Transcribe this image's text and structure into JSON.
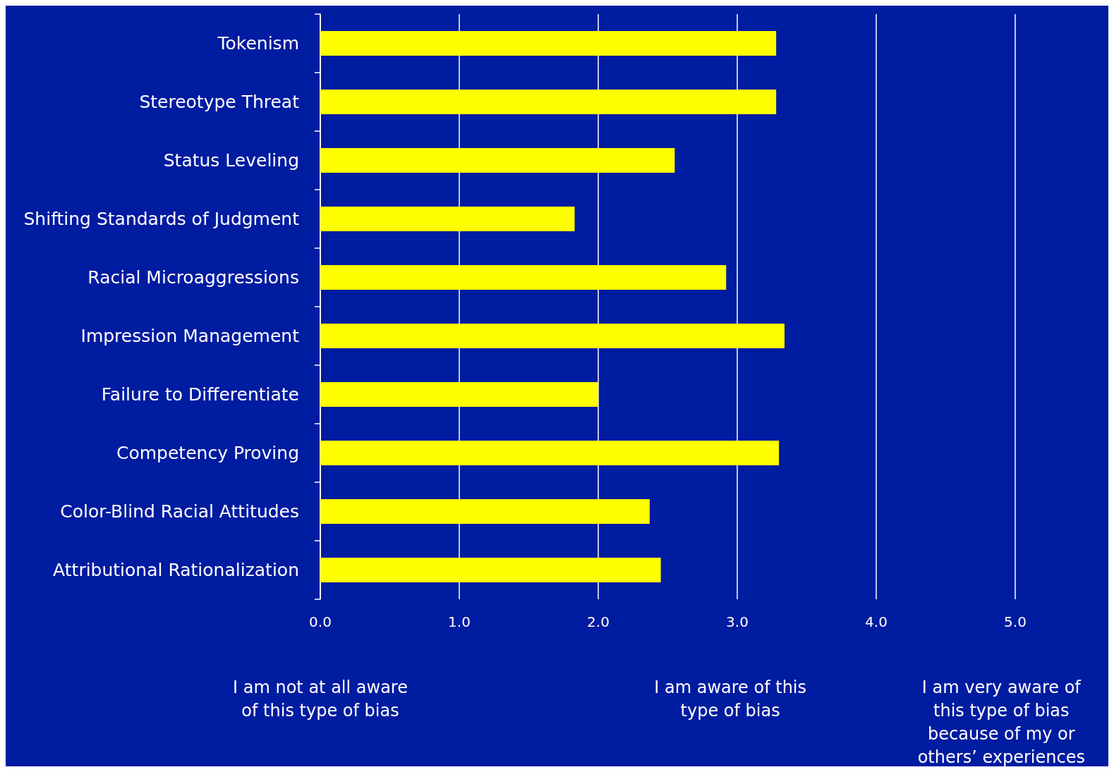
{
  "chart_data": {
    "type": "bar",
    "orientation": "horizontal",
    "categories": [
      "Tokenism",
      "Stereotype Threat",
      "Status Leveling",
      "Shifting Standards of Judgment",
      "Racial Microaggressions",
      "Impression Management",
      "Failure to Differentiate",
      "Competency Proving",
      "Color-Blind Racial Attitudes",
      "Attributional Rationalization"
    ],
    "values": [
      3.28,
      3.28,
      2.55,
      1.83,
      2.92,
      3.34,
      2.0,
      3.3,
      2.37,
      2.45
    ],
    "color": "#ffff00",
    "xlim": [
      0,
      5
    ],
    "xticks": [
      {
        "value": 0,
        "label": "0.0"
      },
      {
        "value": 1,
        "label": "1.0"
      },
      {
        "value": 2,
        "label": "2.0"
      },
      {
        "value": 3,
        "label": "3.0"
      },
      {
        "value": 4,
        "label": "4.0"
      },
      {
        "value": 5,
        "label": "5.0"
      }
    ],
    "grid": "x",
    "annotations": [
      "I am not at all aware\nof this type of bias",
      "I am aware of this\ntype of bias",
      "I am very aware of\nthis type of bias\nbecause of my or\nothers’ experiences"
    ]
  }
}
